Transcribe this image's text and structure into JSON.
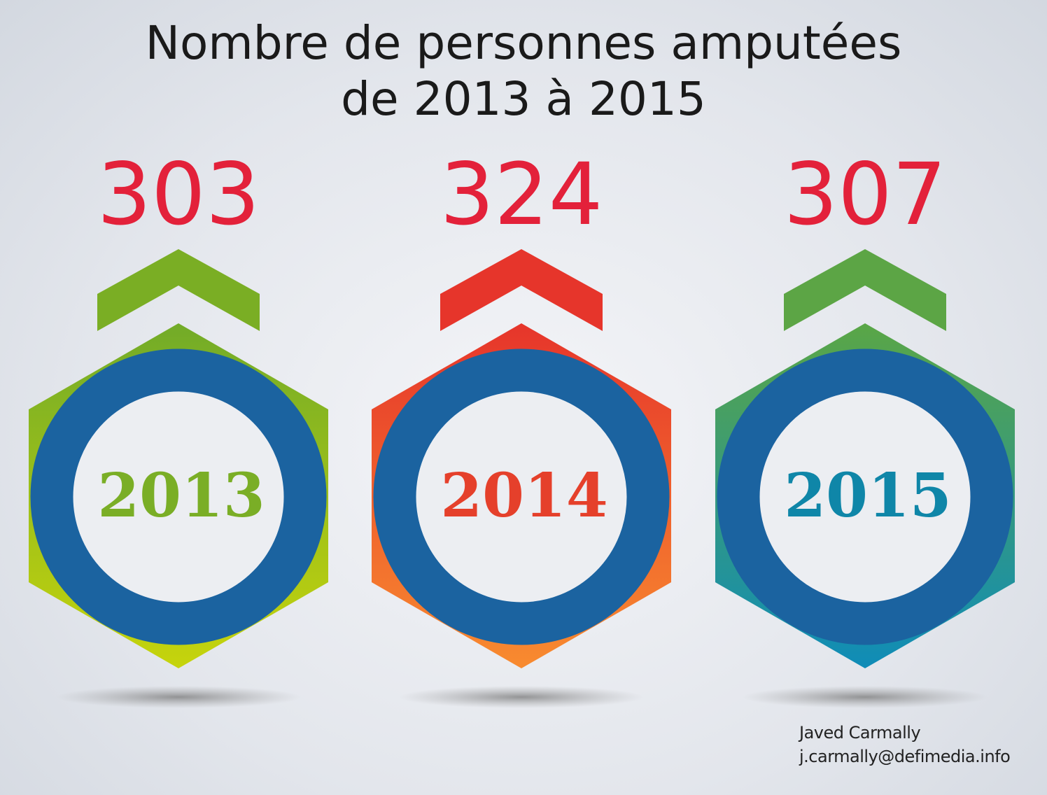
{
  "title": {
    "line1": "Nombre de personnes amputées",
    "line2": "de 2013 à 2015"
  },
  "chart_data": {
    "type": "bar",
    "title": "Nombre de personnes amputées de 2013 à 2015",
    "categories": [
      "2013",
      "2014",
      "2015"
    ],
    "values": [
      303,
      324,
      307
    ],
    "xlabel": "",
    "ylabel": ""
  },
  "items": [
    {
      "year": "2013",
      "value": "303",
      "colors": {
        "chevron": "#7aae24",
        "hex_top": "#72ab28",
        "hex_bottom": "#c6d40c",
        "year_text": "#7aae26"
      }
    },
    {
      "year": "2014",
      "value": "324",
      "colors": {
        "chevron": "#e6352b",
        "hex_top": "#e6352b",
        "hex_bottom": "#f88b2f",
        "year_text": "#e5402b"
      }
    },
    {
      "year": "2015",
      "value": "307",
      "colors": {
        "chevron": "#5ca545",
        "hex_top": "#5aa646",
        "hex_bottom": "#0f8cb8",
        "year_text": "#0f86a8"
      }
    }
  ],
  "colors": {
    "value_text": "#e3213a",
    "ring": "#1b63a0"
  },
  "credits": {
    "name": "Javed Carmally",
    "email": "j.carmally@defimedia.info"
  }
}
